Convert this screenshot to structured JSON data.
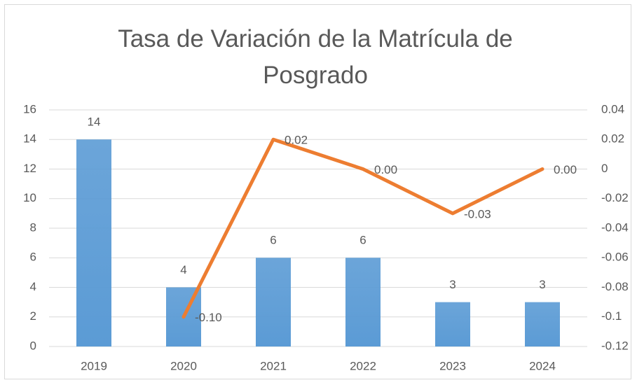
{
  "chart_data": {
    "type": "bar",
    "title": "Tasa de Variación de la Matrícula de Posgrado",
    "categories": [
      "2019",
      "2020",
      "2021",
      "2022",
      "2023",
      "2024"
    ],
    "series": [
      {
        "type": "bar",
        "color": "#5b9bd5",
        "values": [
          14,
          4,
          6,
          6,
          3,
          3
        ]
      },
      {
        "type": "line",
        "axis": "y2",
        "color": "#ed7d31",
        "values": [
          null,
          -0.1,
          0.02,
          0,
          -0.03,
          0
        ],
        "value_labels": [
          null,
          "-0.10",
          "0.02",
          "0.00",
          "-0.03",
          "0.00"
        ]
      }
    ],
    "ylim": [
      0,
      16
    ],
    "yticks": [
      0,
      2,
      4,
      6,
      8,
      10,
      12,
      14,
      16
    ],
    "y2lim": [
      -0.12,
      0.04
    ],
    "y2ticks": [
      -0.12,
      -0.1,
      -0.08,
      -0.06,
      -0.04,
      -0.02,
      0,
      0.02,
      0.04
    ],
    "grid": true
  }
}
